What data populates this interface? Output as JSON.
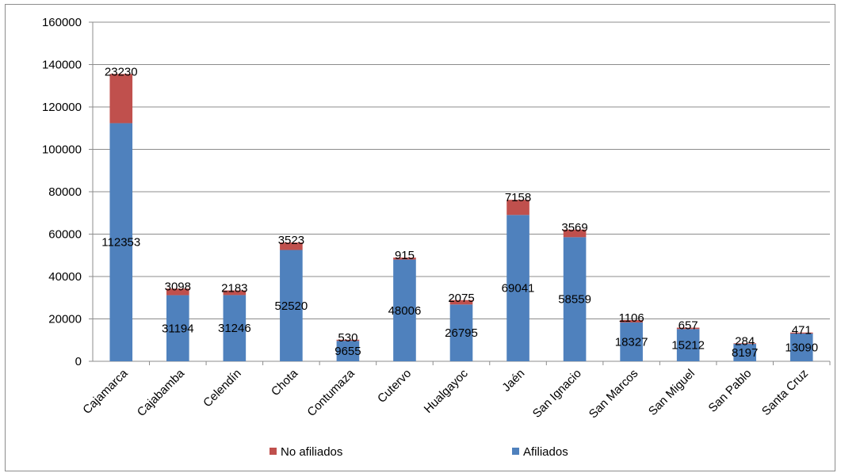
{
  "chart_data": {
    "type": "bar",
    "stacked": true,
    "categories": [
      "Cajamarca",
      "Cajabamba",
      "Celendín",
      "Chota",
      "Contumaza",
      "Cutervo",
      "Hualgayoc",
      "Jaén",
      "San Ignacio",
      "San Marcos",
      "San Miguel",
      "San Pablo",
      "Santa Cruz"
    ],
    "series": [
      {
        "name": "Afiliados",
        "color": "#4f81bd",
        "values": [
          112353,
          31194,
          31246,
          52520,
          9655,
          48006,
          26795,
          69041,
          58559,
          18327,
          15212,
          8197,
          13090
        ]
      },
      {
        "name": "No afiliados",
        "color": "#c0504d",
        "values": [
          23230,
          3098,
          2183,
          3523,
          530,
          915,
          2075,
          7158,
          3569,
          1106,
          657,
          284,
          471
        ]
      }
    ],
    "ylim": [
      0,
      160000
    ],
    "yticks": [
      "0",
      "20000",
      "40000",
      "60000",
      "80000",
      "100000",
      "120000",
      "140000",
      "160000"
    ],
    "grid": true,
    "legend_position": "bottom",
    "legend_order": [
      "No afiliados",
      "Afiliados"
    ]
  }
}
